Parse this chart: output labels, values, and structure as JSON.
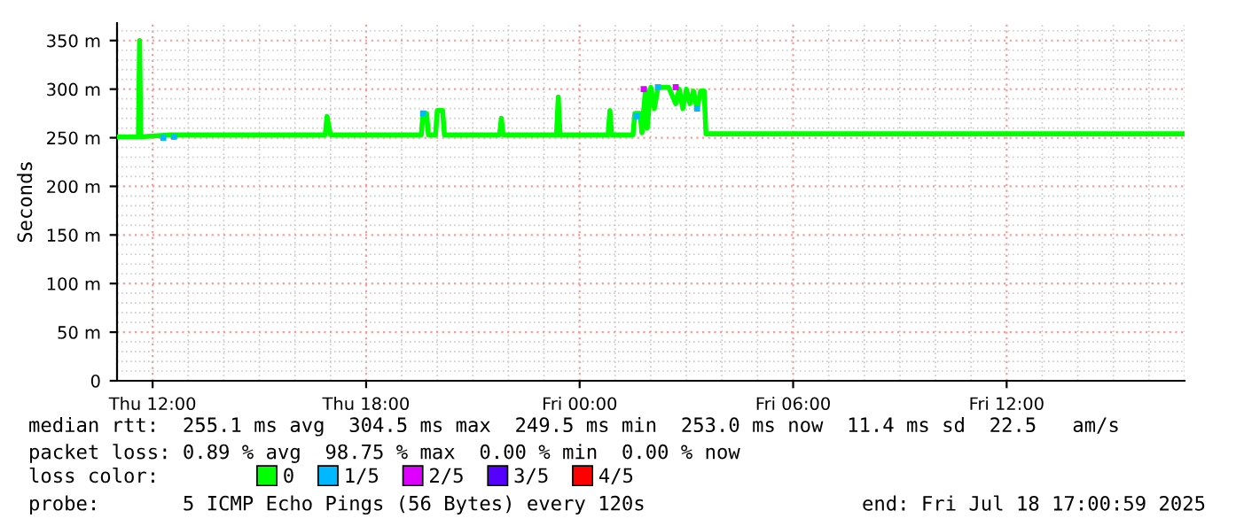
{
  "chart_data": {
    "type": "line",
    "ylabel": "Seconds",
    "xlim": [
      "2025-07-17T11:00",
      "2025-07-18T17:00"
    ],
    "ylim": [
      0,
      368
    ],
    "xticks": [
      {
        "value": "2025-07-17T12:00",
        "label": "Thu 12:00"
      },
      {
        "value": "2025-07-17T18:00",
        "label": "Thu 18:00"
      },
      {
        "value": "2025-07-18T00:00",
        "label": "Fri 00:00"
      },
      {
        "value": "2025-07-18T06:00",
        "label": "Fri 06:00"
      },
      {
        "value": "2025-07-18T12:00",
        "label": "Fri 12:00"
      }
    ],
    "yticks": [
      0,
      {
        "value": 50,
        "label": "50 m"
      },
      {
        "value": 100,
        "label": "100 m"
      },
      {
        "value": 150,
        "label": "150 m"
      },
      {
        "value": 200,
        "label": "200 m"
      },
      {
        "value": 250,
        "label": "250 m"
      },
      {
        "value": 300,
        "label": "300 m"
      },
      {
        "value": 350,
        "label": "350 m"
      }
    ],
    "grid": true,
    "legend": "bottom",
    "series": [
      {
        "name": "0",
        "color": "#00ff00",
        "x": [
          "2025-07-17T11:00",
          "2025-07-17T11:36",
          "2025-07-17T11:38",
          "2025-07-17T11:40",
          "2025-07-17T12:30",
          "2025-07-17T16:51",
          "2025-07-17T16:54",
          "2025-07-17T17:00",
          "2025-07-17T17:03",
          "2025-07-17T19:33",
          "2025-07-17T19:36",
          "2025-07-17T19:42",
          "2025-07-17T19:45",
          "2025-07-17T19:57",
          "2025-07-17T20:00",
          "2025-07-17T20:09",
          "2025-07-17T20:12",
          "2025-07-17T21:45",
          "2025-07-17T21:48",
          "2025-07-17T21:51",
          "2025-07-17T23:21",
          "2025-07-17T23:24",
          "2025-07-17T23:27",
          "2025-07-18T00:48",
          "2025-07-18T00:51",
          "2025-07-18T00:54",
          "2025-07-18T01:30",
          "2025-07-18T01:33",
          "2025-07-18T01:42",
          "2025-07-18T01:45",
          "2025-07-18T01:51",
          "2025-07-18T01:54",
          "2025-07-18T02:00",
          "2025-07-18T02:06",
          "2025-07-18T02:12",
          "2025-07-18T02:18",
          "2025-07-18T02:30",
          "2025-07-18T02:42",
          "2025-07-18T02:48",
          "2025-07-18T02:54",
          "2025-07-18T03:00",
          "2025-07-18T03:06",
          "2025-07-18T03:12",
          "2025-07-18T03:18",
          "2025-07-18T03:24",
          "2025-07-18T03:30",
          "2025-07-18T03:33",
          "2025-07-18T06:00",
          "2025-07-18T11:00",
          "2025-07-18T17:00"
        ],
        "values": [
          251,
          251,
          350,
          251,
          253,
          253,
          272,
          253,
          253,
          253,
          275,
          275,
          253,
          253,
          278,
          278,
          253,
          253,
          270,
          253,
          253,
          292,
          253,
          253,
          278,
          253,
          253,
          275,
          275,
          255,
          300,
          260,
          302,
          280,
          302,
          302,
          302,
          285,
          300,
          280,
          300,
          285,
          298,
          280,
          298,
          298,
          254,
          254,
          254,
          254
        ]
      },
      {
        "name": "1/5",
        "color": "#00b8ff",
        "type": "scatter",
        "x": [
          "2025-07-17T12:18",
          "2025-07-17T12:36",
          "2025-07-17T19:36",
          "2025-07-18T01:36",
          "2025-07-18T02:12",
          "2025-07-18T03:18"
        ],
        "values": [
          250,
          251,
          275,
          272,
          302,
          280
        ],
        "marker": "square"
      },
      {
        "name": "2/5",
        "color": "#dd00ff",
        "type": "scatter",
        "x": [
          "2025-07-18T01:48",
          "2025-07-18T02:42"
        ],
        "values": [
          300,
          302
        ],
        "marker": "square"
      },
      {
        "name": "3/5",
        "color": "#5500ff",
        "type": "scatter",
        "marker": "square"
      },
      {
        "name": "4/5",
        "color": "#ff0000",
        "type": "scatter",
        "marker": "square"
      }
    ],
    "annotations": [
      "median rtt:  255.1 ms avg  304.5 ms max  249.5 ms min  253.0 ms now  11.4 ms sd  22.5   am/s",
      "packet loss: 0.89 % avg  98.75 % max  0.00 % min  0.00 % now",
      "loss color:",
      "probe:       5 ICMP Echo Pings (56 Bytes) every 120s",
      "end: Fri Jul 18 17:00:59 2025"
    ]
  }
}
